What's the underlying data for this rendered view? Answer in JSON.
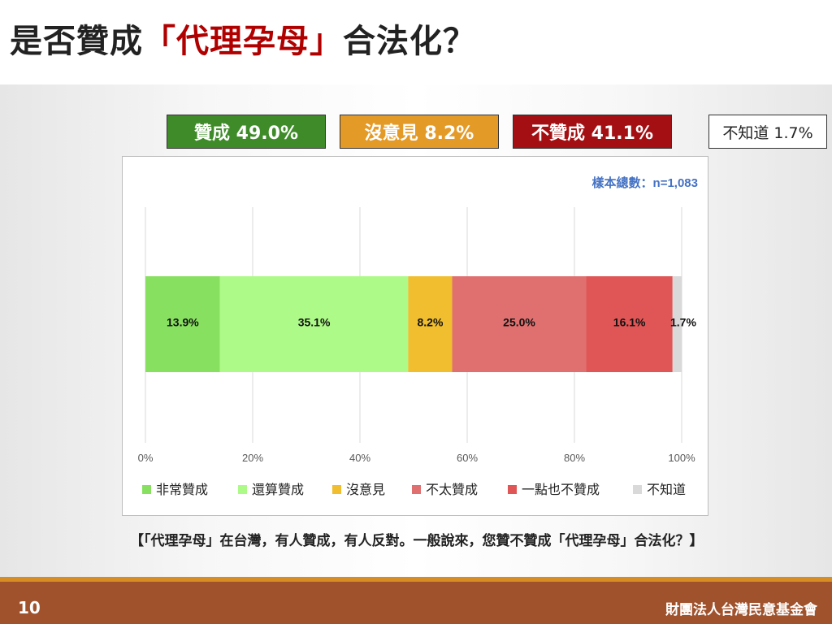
{
  "slide": {
    "title_prefix": "是否贊成",
    "title_highlight": "「代理孕母」",
    "title_suffix": "合法化？",
    "summary": {
      "agree": "贊成 49.0%",
      "neutral": "沒意見 8.2%",
      "disagree": "不贊成 41.1%",
      "unknown": "不知道 1.7%"
    },
    "question": "【「代理孕母」在台灣，有人贊成，有人反對。一般說來，您贊不贊成「代理孕母」合法化？】",
    "page_number": "10",
    "organization": "財團法人台灣民意基金會"
  },
  "chart_data": {
    "type": "bar",
    "orientation": "horizontal-stacked-100",
    "sample_note": "樣本總數：n=1,083",
    "xlim": [
      0,
      100
    ],
    "x_ticks": [
      "0%",
      "20%",
      "40%",
      "60%",
      "80%",
      "100%"
    ],
    "grid": true,
    "legend_position": "bottom",
    "series": [
      {
        "name": "非常贊成",
        "value": 13.9,
        "label": "13.9%",
        "color": "#88e060"
      },
      {
        "name": "還算贊成",
        "value": 35.1,
        "label": "35.1%",
        "color": "#adfa88"
      },
      {
        "name": "沒意見",
        "value": 8.2,
        "label": "8.2%",
        "color": "#f0be2e"
      },
      {
        "name": "不太贊成",
        "value": 25.0,
        "label": "25.0%",
        "color": "#e07070"
      },
      {
        "name": "一點也不贊成",
        "value": 16.1,
        "label": "16.1%",
        "color": "#e05656"
      },
      {
        "name": "不知道",
        "value": 1.7,
        "label": "1.7%",
        "color": "#d9d9d9"
      }
    ]
  }
}
